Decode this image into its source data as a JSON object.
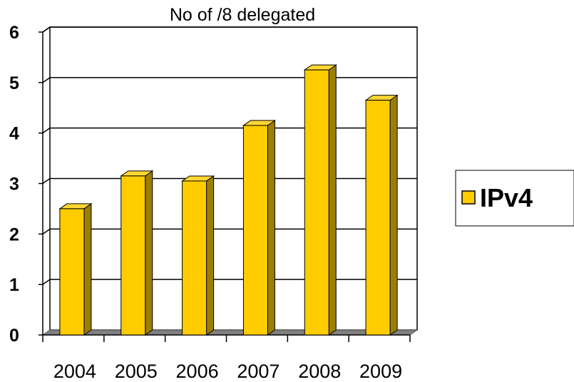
{
  "chart_data": {
    "type": "bar",
    "title": "No of /8 delegated",
    "categories": [
      "2004",
      "2005",
      "2006",
      "2007",
      "2008",
      "2009"
    ],
    "series": [
      {
        "name": "IPv4",
        "values": [
          2.5,
          3.15,
          3.05,
          4.15,
          5.25,
          4.65
        ]
      }
    ],
    "y_ticks": [
      "0",
      "1",
      "2",
      "3",
      "4",
      "5",
      "6"
    ],
    "ylim": [
      0,
      6
    ],
    "grid": true,
    "legend": "right",
    "style": "3d",
    "colors": {
      "bar_front": "#ffcc00",
      "bar_side": "#9c7f00",
      "bar_top": "#ffd633",
      "floor": "#808080",
      "grid": "#000000"
    }
  }
}
